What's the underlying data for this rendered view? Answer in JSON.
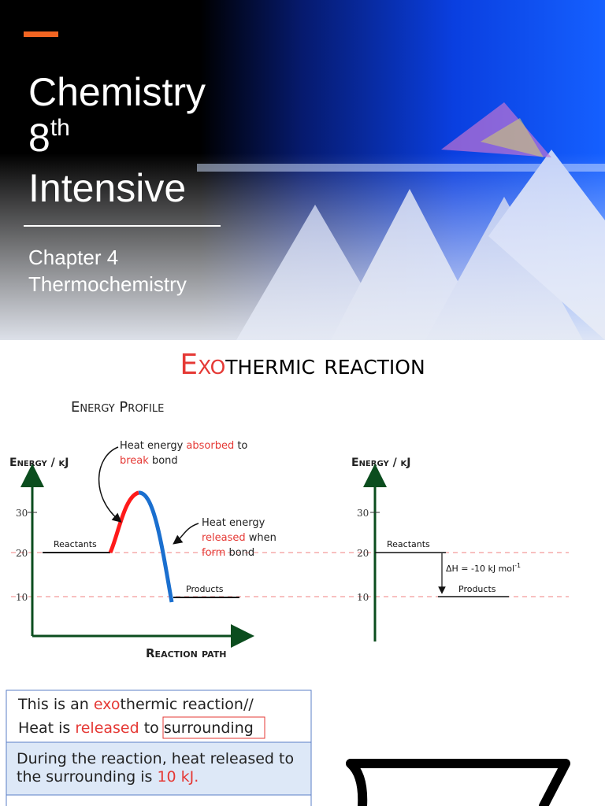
{
  "cover": {
    "title": "Chemistry",
    "edition": "8",
    "edition_suffix": "th",
    "title_line2": "Intensive",
    "subtitle_line1": "Chapter 4",
    "subtitle_line2": "Thermochemistry"
  },
  "page": {
    "heading_highlight": "Exo",
    "heading_rest": "thermic reaction",
    "section_label": "Energy Profile"
  },
  "left_diagram": {
    "y_label": "Energy / kJ",
    "ticks": [
      "30",
      "20",
      "10"
    ],
    "reactants": "Reactants",
    "products": "Products",
    "x_label": "Reaction path",
    "absorb_note": [
      "Heat energy ",
      "absorbed",
      " to",
      "break",
      " bond"
    ],
    "release_note": [
      "Heat energy",
      "released",
      " when",
      "form",
      " bond"
    ]
  },
  "right_diagram": {
    "y_label": "Energy / kJ",
    "ticks": [
      "30",
      "20",
      "10"
    ],
    "reactants": "Reactants",
    "products": "Products",
    "delta_h": "ΔH = -10 kJ mol",
    "delta_h_exponent": "-1"
  },
  "notes": {
    "box1": [
      "This is an ",
      "exo",
      "thermic reaction//",
      "Heat is ",
      "released",
      " to ",
      "surrounding"
    ],
    "box2": [
      "During the reaction, heat released to",
      "the surrounding is ",
      "10 kJ",
      "."
    ]
  }
}
